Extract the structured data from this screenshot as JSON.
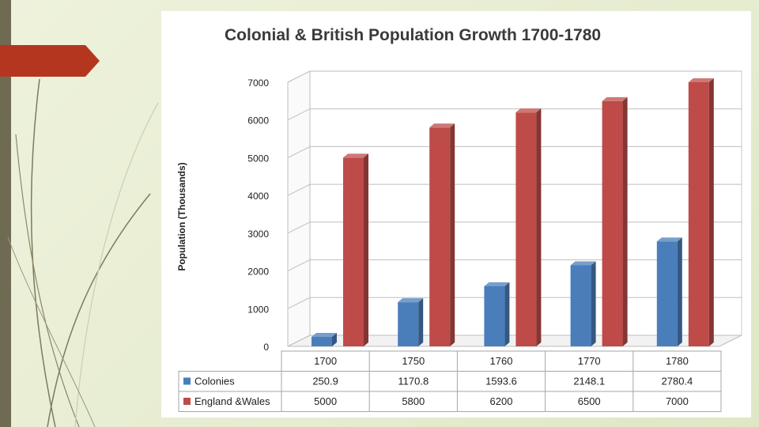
{
  "slide": {
    "accent_color": "#b5361f",
    "sidebar_color": "#6f6b52"
  },
  "chart_data": {
    "type": "bar",
    "title": "Colonial & British Population Growth 1700-1780",
    "ylabel": "Population (Thousands)",
    "xlabel": "",
    "ylim": [
      0,
      7000
    ],
    "yticks": [
      0,
      1000,
      2000,
      3000,
      4000,
      5000,
      6000,
      7000
    ],
    "categories": [
      "1700",
      "1750",
      "1760",
      "1770",
      "1780"
    ],
    "grid": true,
    "legend": "data-table-bottom",
    "series": [
      {
        "name": "Colonies",
        "color": "#4a7ebb",
        "values": [
          250.9,
          1170.8,
          1593.6,
          2148.1,
          2780.4
        ],
        "labels": [
          "250.9",
          "1170.8",
          "1593.6",
          "2148.1",
          "2780.4"
        ]
      },
      {
        "name": "England &Wales",
        "color": "#be4b48",
        "values": [
          5000,
          5800,
          6200,
          6500,
          7000
        ],
        "labels": [
          "5000",
          "5800",
          "6200",
          "6500",
          "7000"
        ]
      }
    ]
  }
}
